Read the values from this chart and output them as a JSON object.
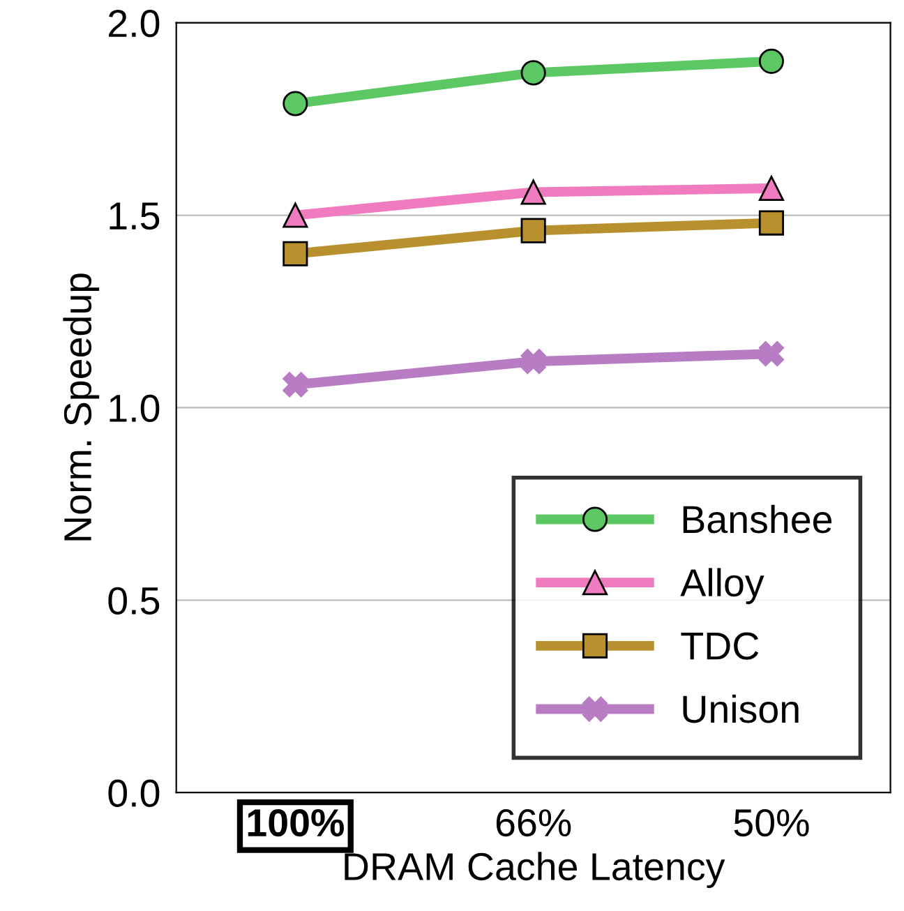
{
  "chart_data": {
    "type": "line",
    "xlabel": "DRAM Cache Latency",
    "ylabel": "Norm. Speedup",
    "categories": [
      "100%",
      "66%",
      "50%"
    ],
    "series": [
      {
        "name": "Banshee",
        "color": "#5cc863",
        "marker": "circle",
        "values": [
          1.79,
          1.87,
          1.9
        ]
      },
      {
        "name": "Alloy",
        "color": "#f07cbf",
        "marker": "triangle",
        "values": [
          1.5,
          1.56,
          1.57
        ]
      },
      {
        "name": "TDC",
        "color": "#b8902e",
        "marker": "square",
        "values": [
          1.4,
          1.46,
          1.48
        ]
      },
      {
        "name": "Unison",
        "color": "#b77cc4",
        "marker": "cross",
        "values": [
          1.06,
          1.12,
          1.14
        ]
      }
    ],
    "ylim": [
      0.0,
      2.0
    ],
    "yticks": [
      {
        "value": 0,
        "label": "0.0"
      },
      {
        "value": 0.5,
        "label": "0.5"
      },
      {
        "value": 1,
        "label": "1.0"
      },
      {
        "value": 1.5,
        "label": "1.5"
      },
      {
        "value": 2,
        "label": "2.0"
      }
    ],
    "grid": "y",
    "legend": "bottom right",
    "line_style": "solid"
  }
}
